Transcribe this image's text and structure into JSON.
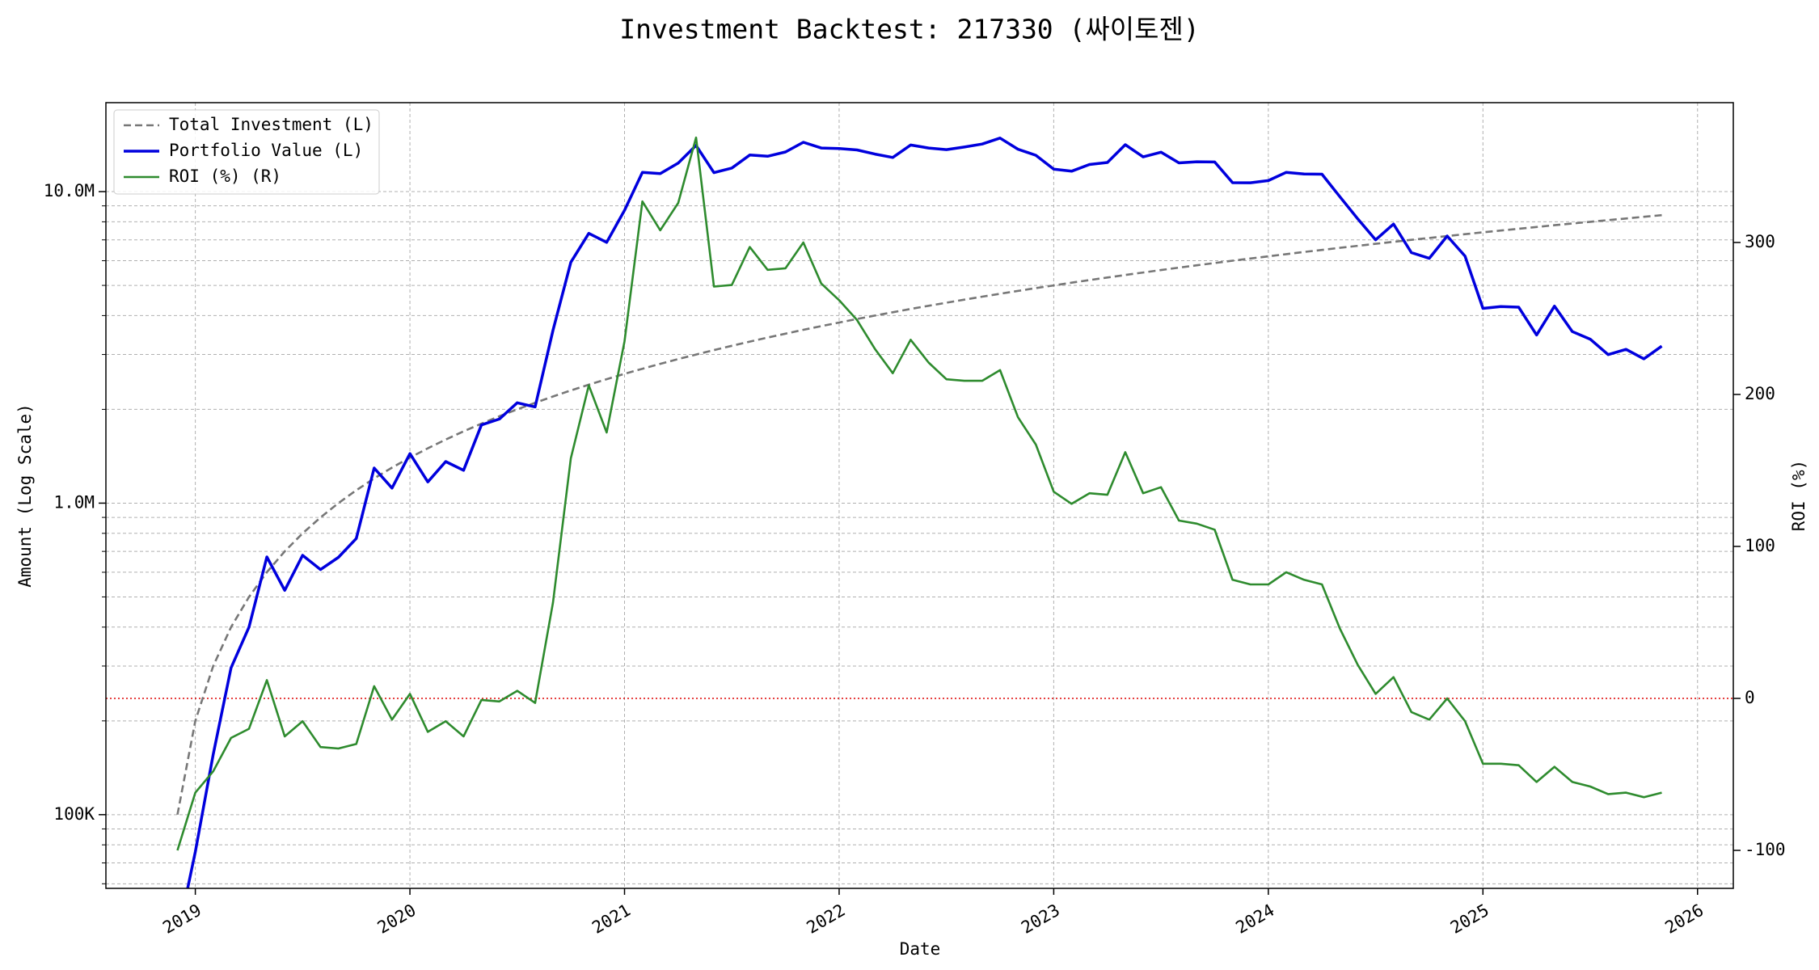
{
  "chart_data": {
    "type": "line",
    "title": "Investment Backtest: 217330 (싸이토젠)",
    "xlabel": "Date",
    "ylabel": "Amount (Log Scale)",
    "y2label": "ROI (%)",
    "x": [
      "2018-12",
      "2019-01",
      "2019-02",
      "2019-03",
      "2019-04",
      "2019-05",
      "2019-06",
      "2019-07",
      "2019-08",
      "2019-09",
      "2019-10",
      "2019-11",
      "2019-12",
      "2020-01",
      "2020-02",
      "2020-03",
      "2020-04",
      "2020-05",
      "2020-06",
      "2020-07",
      "2020-08",
      "2020-09",
      "2020-10",
      "2020-11",
      "2020-12",
      "2021-01",
      "2021-02",
      "2021-03",
      "2021-04",
      "2021-05",
      "2021-06",
      "2021-07",
      "2021-08",
      "2021-09",
      "2021-10",
      "2021-11",
      "2021-12",
      "2022-01",
      "2022-02",
      "2022-03",
      "2022-04",
      "2022-05",
      "2022-06",
      "2022-07",
      "2022-08",
      "2022-09",
      "2022-10",
      "2022-11",
      "2022-12",
      "2023-01",
      "2023-02",
      "2023-03",
      "2023-04",
      "2023-05",
      "2023-06",
      "2023-07",
      "2023-08",
      "2023-09",
      "2023-10",
      "2023-11",
      "2023-12",
      "2024-01",
      "2024-02",
      "2024-03",
      "2024-04",
      "2024-05",
      "2024-06",
      "2024-07",
      "2024-08",
      "2024-09",
      "2024-10",
      "2024-11",
      "2024-12",
      "2025-01",
      "2025-02",
      "2025-03",
      "2025-04",
      "2025-05",
      "2025-06",
      "2025-07",
      "2025-08",
      "2025-09",
      "2025-10",
      "2025-11"
    ],
    "series": [
      {
        "name": "Total Investment (L)",
        "color": "#777777",
        "dash": true,
        "axis": "y",
        "values": [
          100000,
          200000,
          300000,
          400000,
          500000,
          600000,
          700000,
          800000,
          900000,
          1000000,
          1100000,
          1200000,
          1300000,
          1400000,
          1500000,
          1600000,
          1700000,
          1800000,
          1900000,
          2000000,
          2100000,
          2200000,
          2300000,
          2400000,
          2500000,
          2600000,
          2700000,
          2800000,
          2900000,
          3000000,
          3100000,
          3200000,
          3300000,
          3400000,
          3500000,
          3600000,
          3700000,
          3800000,
          3900000,
          4000000,
          4100000,
          4200000,
          4300000,
          4400000,
          4500000,
          4600000,
          4700000,
          4800000,
          4900000,
          5000000,
          5100000,
          5200000,
          5300000,
          5400000,
          5500000,
          5600000,
          5700000,
          5800000,
          5900000,
          6000000,
          6100000,
          6200000,
          6300000,
          6400000,
          6500000,
          6600000,
          6700000,
          6800000,
          6900000,
          7000000,
          7100000,
          7200000,
          7300000,
          7400000,
          7500000,
          7600000,
          7700000,
          7800000,
          7900000,
          8000000,
          8100000,
          8200000,
          8300000,
          8400000
        ]
      },
      {
        "name": "Portfolio Value (L)",
        "color": "#0000dd",
        "dash": false,
        "axis": "y",
        "values": [
          0,
          76000,
          156000,
          296000,
          400000,
          672000,
          525000,
          680000,
          612000,
          670000,
          770000,
          1296000,
          1118000,
          1442000,
          1170000,
          1360000,
          1275000,
          1782000,
          1862000,
          2100000,
          2037000,
          3586000,
          5934000,
          7344000,
          6875000,
          8710000,
          11529000,
          11424000,
          12354000,
          14070000,
          11501000,
          11904000,
          13101000,
          12988000,
          13405000,
          14400000,
          13801000,
          13756000,
          13611000,
          13200000,
          12874000,
          14112000,
          13803000,
          13640000,
          13905000,
          14214000,
          14852000,
          13680000,
          13083000,
          11800000,
          11628000,
          12220000,
          12402000,
          14148000,
          12925000,
          13384000,
          12369000,
          12470000,
          12449000,
          10680000,
          10675000,
          10850000,
          11529000,
          11392000,
          11375000,
          9636000,
          8174000,
          7004000,
          7866000,
          6370000,
          6106000,
          7200000,
          6205000,
          4218000,
          4275000,
          4256000,
          3465000,
          4290000,
          3555000,
          3360000,
          2997000,
          3116000,
          2905000,
          3192000
        ]
      },
      {
        "name": "ROI (%) (R)",
        "color": "#2e8b2e",
        "dash": false,
        "axis": "y2",
        "values": [
          -100,
          -62,
          -48,
          -26,
          -20,
          12,
          -25,
          -15,
          -32,
          -33,
          -30,
          8,
          -14,
          3,
          -22,
          -15,
          -25,
          -1,
          -2,
          5,
          -3,
          63,
          158,
          206,
          175,
          235,
          327,
          308,
          326,
          369,
          271,
          272,
          297,
          282,
          283,
          300,
          273,
          262,
          249,
          230,
          214,
          236,
          221,
          210,
          209,
          209,
          216,
          185,
          167,
          136,
          128,
          135,
          134,
          162,
          135,
          139,
          117,
          115,
          111,
          78,
          75,
          75,
          83,
          78,
          75,
          46,
          22,
          3,
          14,
          -9,
          -14,
          0,
          -15,
          -43,
          -43,
          -44,
          -55,
          -45,
          -55,
          -58,
          -63,
          -62,
          -65,
          -62
        ]
      }
    ],
    "xlim": [
      "2018-08",
      "2026-03"
    ],
    "xticks": [
      {
        "value": "2019-01",
        "label": "2019"
      },
      {
        "value": "2020-01",
        "label": "2020"
      },
      {
        "value": "2021-01",
        "label": "2021"
      },
      {
        "value": "2022-01",
        "label": "2022"
      },
      {
        "value": "2023-01",
        "label": "2023"
      },
      {
        "value": "2024-01",
        "label": "2024"
      },
      {
        "value": "2025-01",
        "label": "2025"
      },
      {
        "value": "2026-01",
        "label": "2026"
      }
    ],
    "ylim": [
      58000,
      19300000
    ],
    "yscale": "log",
    "yticks": [
      {
        "value": 100000,
        "label": "100K"
      },
      {
        "value": 1000000,
        "label": "1.0M"
      },
      {
        "value": 10000000,
        "label": "10.0M"
      }
    ],
    "y2lim": [
      -125,
      392
    ],
    "y2ticks": [
      -100,
      0,
      100,
      200,
      300
    ],
    "y_color": "#0000dd",
    "y2_color": "#2e8b2e",
    "grid": true,
    "minor_grid": true,
    "legend": "upper left",
    "hline": {
      "value": 0,
      "axis": "y2",
      "color": "#dd0000"
    }
  }
}
